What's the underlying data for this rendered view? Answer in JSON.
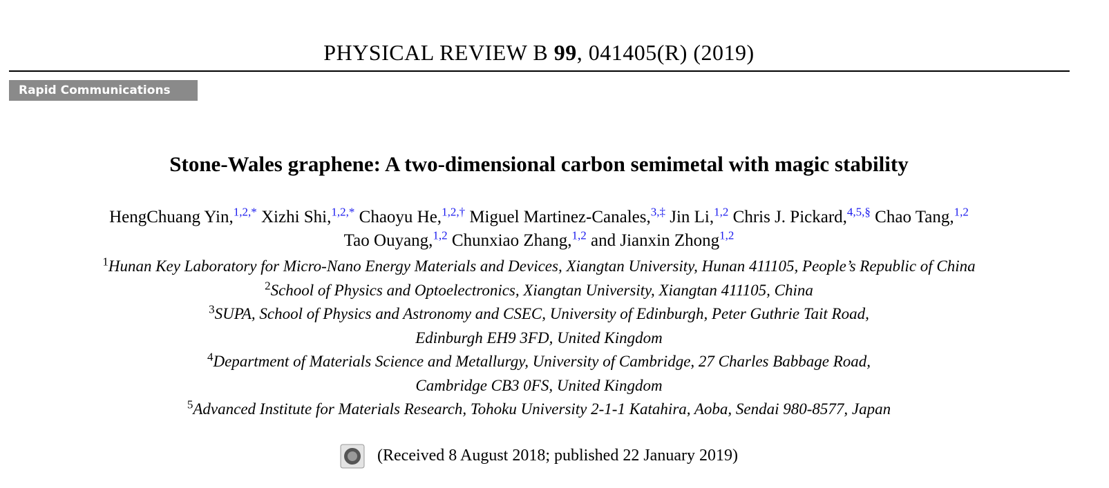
{
  "header": {
    "journal": "PHYSICAL REVIEW B",
    "volume": "99",
    "citation": ", 041405(R) (2019)"
  },
  "section": "Rapid Communications",
  "title": "Stone-Wales graphene: A two-dimensional carbon semimetal with magic stability",
  "authors": [
    [
      {
        "name": "HengChuang Yin,",
        "marks": "1,2,*"
      },
      {
        "name": "Xizhi Shi,",
        "marks": "1,2,*"
      },
      {
        "name": "Chaoyu He,",
        "marks": "1,2,†"
      },
      {
        "name": "Miguel Martinez-Canales,",
        "marks": "3,‡"
      },
      {
        "name": "Jin Li,",
        "marks": "1,2"
      },
      {
        "name": "Chris J. Pickard,",
        "marks": "4,5,§"
      },
      {
        "name": "Chao Tang,",
        "marks": "1,2"
      }
    ],
    [
      {
        "name": "Tao Ouyang,",
        "marks": "1,2"
      },
      {
        "name": "Chunxiao Zhang,",
        "marks": "1,2"
      },
      {
        "name": "and Jianxin Zhong",
        "marks": "1,2"
      }
    ]
  ],
  "affiliations": [
    {
      "number": "1",
      "lines": [
        "Hunan Key Laboratory for Micro-Nano Energy Materials and Devices, Xiangtan University, Hunan 411105, People’s Republic of China"
      ]
    },
    {
      "number": "2",
      "lines": [
        "School of Physics and Optoelectronics, Xiangtan University, Xiangtan 411105, China"
      ]
    },
    {
      "number": "3",
      "lines": [
        "SUPA, School of Physics and Astronomy and CSEC, University of Edinburgh, Peter Guthrie Tait Road,",
        "Edinburgh EH9 3FD, United Kingdom"
      ]
    },
    {
      "number": "4",
      "lines": [
        "Department of Materials Science and Metallurgy, University of Cambridge, 27 Charles Babbage Road,",
        "Cambridge CB3 0FS, United Kingdom"
      ]
    },
    {
      "number": "5",
      "lines": [
        "Advanced Institute for Materials Research, Tohoku University 2-1-1 Katahira, Aoba, Sendai 980-8577, Japan"
      ]
    }
  ],
  "received": "(Received 8 August 2018; published 22 January 2019)"
}
